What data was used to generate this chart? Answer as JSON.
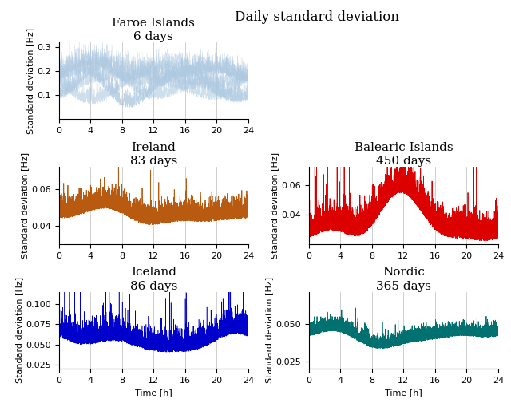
{
  "title": "Daily standard deviation",
  "subplots": [
    {
      "name": "Faroe Islands",
      "days": "6 days",
      "color": "#adc8e0",
      "ylim": [
        0.0,
        0.32
      ],
      "yticks": [
        0.1,
        0.2,
        0.3
      ],
      "seed": 42,
      "base": 0.145,
      "amp": 0.055,
      "noise": 0.035,
      "n_points": 2000,
      "row": 0,
      "col": 0,
      "colspan": 1
    },
    {
      "name": "Ireland",
      "days": "83 days",
      "color": "#b85a10",
      "ylim": [
        0.03,
        0.072
      ],
      "yticks": [
        0.04,
        0.06
      ],
      "seed": 7,
      "base": 0.044,
      "amp": 0.003,
      "noise": 0.005,
      "n_points": 5000,
      "row": 1,
      "col": 0,
      "colspan": 1
    },
    {
      "name": "Balearic Islands",
      "days": "450 days",
      "color": "#dd0000",
      "ylim": [
        0.02,
        0.072
      ],
      "yticks": [
        0.04,
        0.06
      ],
      "seed": 13,
      "base": 0.032,
      "amp": 0.012,
      "noise": 0.008,
      "n_points": 5000,
      "row": 1,
      "col": 1,
      "colspan": 1
    },
    {
      "name": "Iceland",
      "days": "86 days",
      "color": "#0000cc",
      "ylim": [
        0.02,
        0.115
      ],
      "yticks": [
        0.025,
        0.05,
        0.075,
        0.1
      ],
      "seed": 22,
      "base": 0.05,
      "amp": 0.008,
      "noise": 0.012,
      "n_points": 5000,
      "row": 2,
      "col": 0,
      "colspan": 1
    },
    {
      "name": "Nordic",
      "days": "365 days",
      "color": "#007070",
      "ylim": [
        0.02,
        0.072
      ],
      "yticks": [
        0.025,
        0.05
      ],
      "seed": 31,
      "base": 0.04,
      "amp": 0.004,
      "noise": 0.004,
      "n_points": 5000,
      "row": 2,
      "col": 1,
      "colspan": 1
    }
  ],
  "xlabel": "Time [h]",
  "ylabel": "Standard deviation [Hz]",
  "xticks": [
    0,
    4,
    8,
    12,
    16,
    20,
    24
  ],
  "grid_color": "#c8c8c8",
  "bg_color": "#ffffff",
  "title_fontsize": 12,
  "label_fontsize": 8,
  "tick_fontsize": 8,
  "name_fontsize": 11,
  "days_fontsize": 9
}
